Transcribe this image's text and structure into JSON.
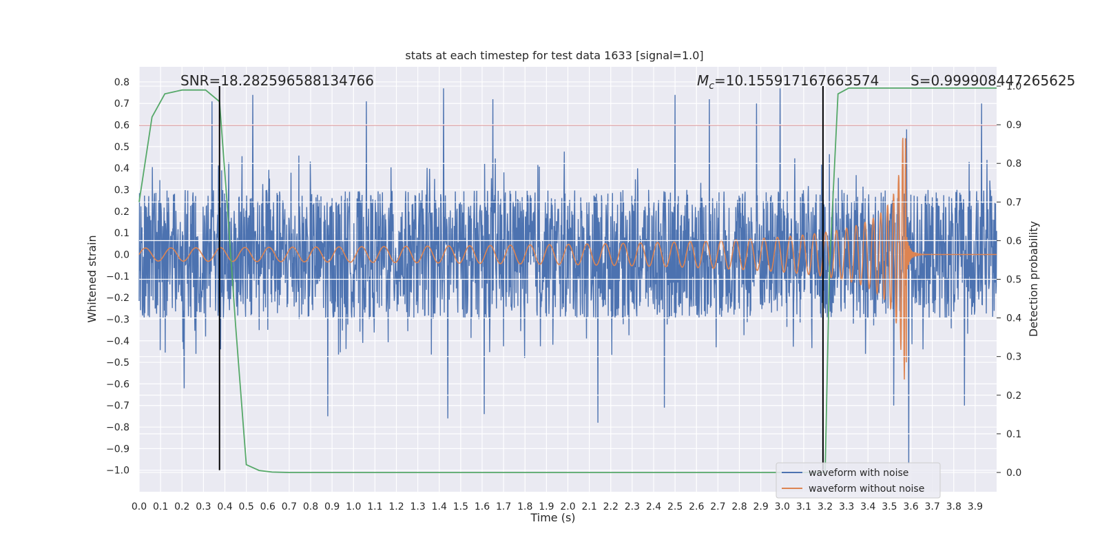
{
  "chart_data": {
    "type": "line",
    "title": "stats at each timestep for test data 1633 [signal=1.0]",
    "xlabel": "Time (s)",
    "ylabel": "Whitened strain",
    "ylabel_right": "Detection probability",
    "xlim": [
      0.0,
      4.0
    ],
    "ylim": [
      -1.1,
      0.87
    ],
    "ylim_right": [
      -0.05,
      1.05
    ],
    "x_ticks": [
      "0.0",
      "0.1",
      "0.2",
      "0.3",
      "0.4",
      "0.5",
      "0.6",
      "0.7",
      "0.8",
      "0.9",
      "1.0",
      "1.1",
      "1.2",
      "1.3",
      "1.4",
      "1.5",
      "1.6",
      "1.7",
      "1.8",
      "1.9",
      "2.0",
      "2.1",
      "2.2",
      "2.3",
      "2.4",
      "2.5",
      "2.6",
      "2.7",
      "2.8",
      "2.9",
      "3.0",
      "3.1",
      "3.2",
      "3.3",
      "3.4",
      "3.5",
      "3.6",
      "3.7",
      "3.8",
      "3.9"
    ],
    "y_ticks": [
      "0.8",
      "0.7",
      "0.6",
      "0.5",
      "0.4",
      "0.3",
      "0.2",
      "0.1",
      "0.0",
      "−0.1",
      "−0.2",
      "−0.3",
      "−0.4",
      "−0.5",
      "−0.6",
      "−0.7",
      "−0.8",
      "−0.9",
      "−1.0"
    ],
    "y_ticks_right": [
      "1.0",
      "0.9",
      "0.8",
      "0.7",
      "0.6",
      "0.5",
      "0.4",
      "0.3",
      "0.2",
      "0.1",
      "0.0"
    ],
    "annotations": {
      "snr": "SNR=18.282596588134766",
      "mc_symbol": "M",
      "mc_sub": "c",
      "mc_value": "=10.155917167663574",
      "s": "S=0.999908447265625"
    },
    "threshold_line": {
      "y": 0.6,
      "color": "#c44e52"
    },
    "vertical_lines": [
      0.375,
      3.19
    ],
    "series": [
      {
        "name": "waveform with noise",
        "color": "#4c72b0",
        "kind": "noise",
        "envelope": 0.3,
        "peaks": [
          [
            0.34,
            0.71
          ],
          [
            0.53,
            0.74
          ],
          [
            1.06,
            0.71
          ],
          [
            1.42,
            0.77
          ],
          [
            1.65,
            0.72
          ],
          [
            2.5,
            0.74
          ],
          [
            2.66,
            0.72
          ],
          [
            2.88,
            0.7
          ],
          [
            2.99,
            0.77
          ],
          [
            3.58,
            0.58
          ],
          [
            3.93,
            0.7
          ],
          [
            0.88,
            -0.75
          ],
          [
            1.44,
            -0.76
          ],
          [
            1.61,
            -0.74
          ],
          [
            2.14,
            -0.78
          ],
          [
            2.45,
            -0.71
          ],
          [
            3.59,
            -0.97
          ],
          [
            3.52,
            -0.7
          ],
          [
            3.85,
            -0.7
          ],
          [
            0.21,
            -0.62
          ]
        ]
      },
      {
        "name": "waveform without noise",
        "color": "#dd8452",
        "kind": "chirp",
        "merger_time": 3.58,
        "amplitude_start": 0.03,
        "amplitude_peak": 0.58
      },
      {
        "name": "Detection probability",
        "color": "#55a868",
        "axis": "right",
        "t": [
          0.0,
          0.06,
          0.12,
          0.2,
          0.26,
          0.31,
          0.375,
          0.41,
          0.45,
          0.5,
          0.56,
          0.62,
          0.7,
          0.8,
          1.0,
          2.0,
          3.0,
          3.16,
          3.2,
          3.22,
          3.26,
          3.31,
          3.4,
          3.6,
          3.8,
          4.0
        ],
        "p": [
          0.7,
          0.92,
          0.98,
          0.99,
          0.99,
          0.99,
          0.96,
          0.7,
          0.38,
          0.02,
          0.005,
          0.001,
          0.0,
          0.0,
          0.0,
          0.0,
          0.0,
          0.0,
          0.0,
          0.52,
          0.98,
          0.995,
          0.995,
          0.995,
          0.995,
          0.995
        ]
      }
    ],
    "legend": {
      "position": "lower-right",
      "entries": [
        {
          "label": "waveform with noise",
          "color": "#4c72b0"
        },
        {
          "label": "waveform without noise",
          "color": "#dd8452"
        }
      ]
    }
  }
}
